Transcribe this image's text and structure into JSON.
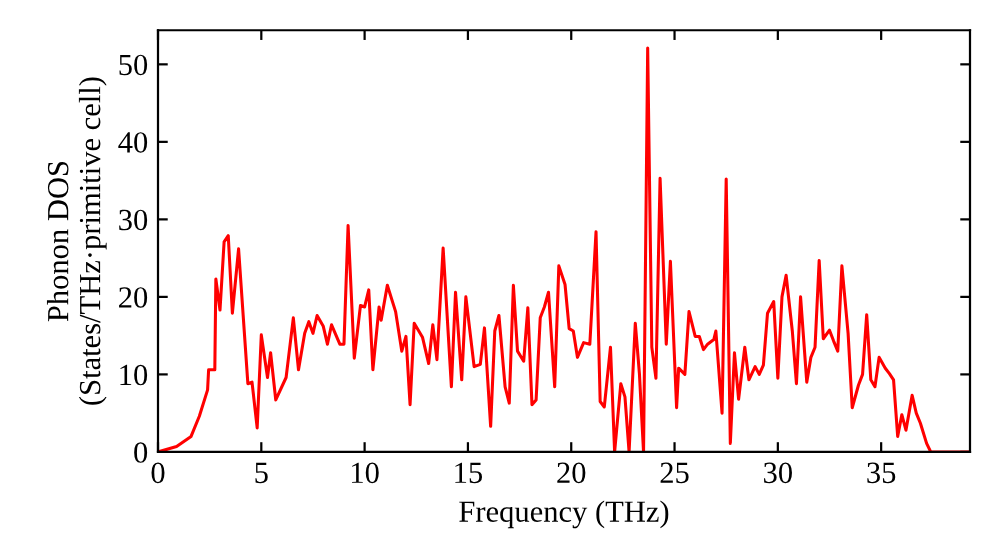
{
  "chart_data": {
    "type": "line",
    "xlabel": "Frequency (THz)",
    "ylabel": "Phonon DOS\n(States/THz·primitive cell)",
    "xlim": [
      0,
      39.3
    ],
    "ylim": [
      0,
      54.4
    ],
    "xticks": [
      0,
      5,
      10,
      15,
      20,
      25,
      30,
      35
    ],
    "yticks": [
      0,
      10,
      20,
      30,
      40,
      50
    ],
    "grid": false,
    "legend": false,
    "marker": "none",
    "line_style": "solid",
    "series": [
      {
        "color": "#ff0000",
        "x": [
          0,
          0.9,
          1.6,
          2.0,
          2.4,
          2.45,
          2.75,
          2.8,
          3.0,
          3.2,
          3.4,
          3.6,
          3.9,
          4.35,
          4.55,
          4.8,
          5.0,
          5.3,
          5.45,
          5.7,
          6.2,
          6.55,
          6.8,
          7.1,
          7.3,
          7.5,
          7.7,
          8.0,
          8.2,
          8.4,
          8.8,
          9.0,
          9.2,
          9.5,
          9.8,
          10.0,
          10.2,
          10.4,
          10.7,
          10.8,
          11.1,
          11.5,
          11.8,
          12.0,
          12.2,
          12.4,
          12.8,
          13.1,
          13.3,
          13.5,
          13.8,
          14.2,
          14.4,
          14.7,
          14.9,
          15.3,
          15.6,
          15.8,
          16.1,
          16.3,
          16.5,
          16.8,
          17.0,
          17.2,
          17.4,
          17.7,
          17.9,
          18.1,
          18.3,
          18.5,
          18.7,
          18.9,
          19.2,
          19.4,
          19.7,
          19.9,
          20.1,
          20.3,
          20.6,
          20.9,
          21.2,
          21.4,
          21.6,
          21.9,
          22.1,
          22.4,
          22.6,
          22.8,
          23.1,
          23.3,
          23.5,
          23.7,
          23.9,
          24.1,
          24.3,
          24.6,
          24.8,
          25.1,
          25.2,
          25.5,
          25.7,
          26.0,
          26.2,
          26.4,
          26.6,
          26.9,
          27.0,
          27.3,
          27.5,
          27.7,
          27.9,
          28.1,
          28.4,
          28.6,
          28.9,
          29.1,
          29.3,
          29.5,
          29.8,
          30.0,
          30.2,
          30.4,
          30.7,
          30.9,
          31.1,
          31.4,
          31.6,
          31.8,
          32.0,
          32.2,
          32.5,
          32.7,
          32.9,
          33.1,
          33.4,
          33.6,
          33.9,
          34.1,
          34.3,
          34.5,
          34.7,
          34.9,
          35.2,
          35.4,
          35.6,
          35.8,
          36.0,
          36.2,
          36.5,
          36.7,
          36.9,
          37.2,
          37.4,
          39.3
        ],
        "values": [
          0,
          0.7,
          2,
          4.6,
          8,
          10.6,
          10.6,
          22.3,
          18.3,
          27.1,
          27.9,
          17.9,
          26.2,
          8.8,
          9,
          3.1,
          15.1,
          9.6,
          12.8,
          6.7,
          9.6,
          17.3,
          10.6,
          15.3,
          16.8,
          15.3,
          17.6,
          16.2,
          13.9,
          16.4,
          13.9,
          13.9,
          29.2,
          12.1,
          18.9,
          18.7,
          20.9,
          10.6,
          18.7,
          17,
          21.5,
          18.1,
          13,
          14.9,
          6.1,
          16.6,
          14.8,
          11.4,
          16.4,
          11.9,
          26.3,
          8.4,
          20.6,
          9.3,
          20,
          11,
          11.3,
          16,
          3.3,
          15.6,
          17.6,
          8.4,
          6.3,
          21.5,
          13,
          11.7,
          18.6,
          6.1,
          6.7,
          17.3,
          18.7,
          20.6,
          8.4,
          24,
          21.6,
          15.9,
          15.6,
          12.2,
          14.1,
          13.9,
          28.4,
          6.5,
          5.8,
          13.5,
          0,
          8.8,
          7.1,
          0,
          16.6,
          10.1,
          0,
          52.1,
          13.5,
          9.5,
          35.3,
          13.9,
          24.6,
          5.7,
          10.8,
          10,
          18.1,
          14.9,
          14.9,
          13.2,
          13.9,
          14.5,
          15.6,
          5,
          35.2,
          1.1,
          12.8,
          6.8,
          13.5,
          9.3,
          11,
          10,
          11.2,
          17.9,
          19.4,
          9.5,
          20,
          22.8,
          15.6,
          8.8,
          20,
          9,
          12.2,
          13.5,
          24.7,
          14.6,
          15.7,
          14.3,
          13,
          24,
          15.3,
          5.7,
          8.6,
          10,
          17.7,
          9.3,
          8.4,
          12.2,
          10.8,
          10.1,
          9.3,
          2,
          4.8,
          2.8,
          7.3,
          5,
          3.7,
          1.1,
          0,
          0
        ]
      }
    ]
  }
}
